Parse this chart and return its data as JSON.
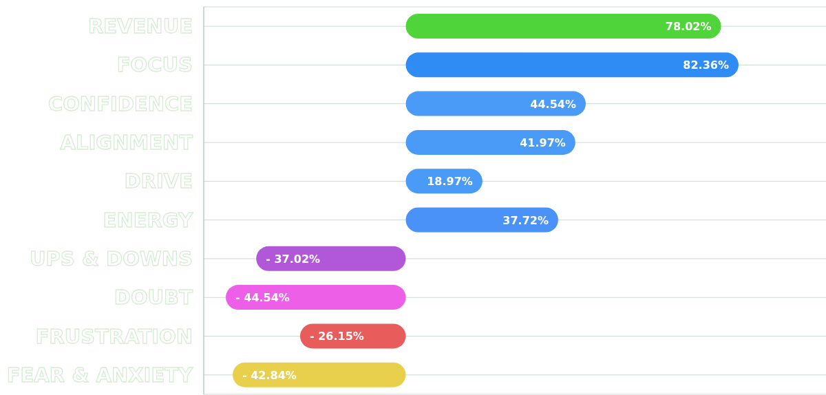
{
  "chart_data": {
    "type": "bar",
    "orientation": "horizontal",
    "categories": [
      "REVENUE",
      "FOCUS",
      "CONFIDENCE",
      "ALIGNMENT",
      "DRIVE",
      "ENERGY",
      "UPS & DOWNS",
      "DOUBT",
      "FRUSTRATION",
      "FEAR & ANXIETY"
    ],
    "values": [
      78.02,
      82.36,
      44.54,
      41.97,
      18.97,
      37.72,
      -37.02,
      -44.54,
      -26.15,
      -42.84
    ],
    "value_labels": [
      "78.02%",
      "82.36%",
      "44.54%",
      "41.97%",
      "18.97%",
      "37.72%",
      "- 37.02%",
      "- 44.54%",
      "- 26.15%",
      "- 42.84%"
    ],
    "colors": [
      "#4fd53a",
      "#2f8cf5",
      "#4a9af7",
      "#4a9af7",
      "#4a9af7",
      "#4a92f7",
      "#b058d8",
      "#ee5fe8",
      "#e85c5c",
      "#e8d04c"
    ],
    "xlim": [
      -50,
      104
    ],
    "tick_labels": "y",
    "grid": "y"
  }
}
